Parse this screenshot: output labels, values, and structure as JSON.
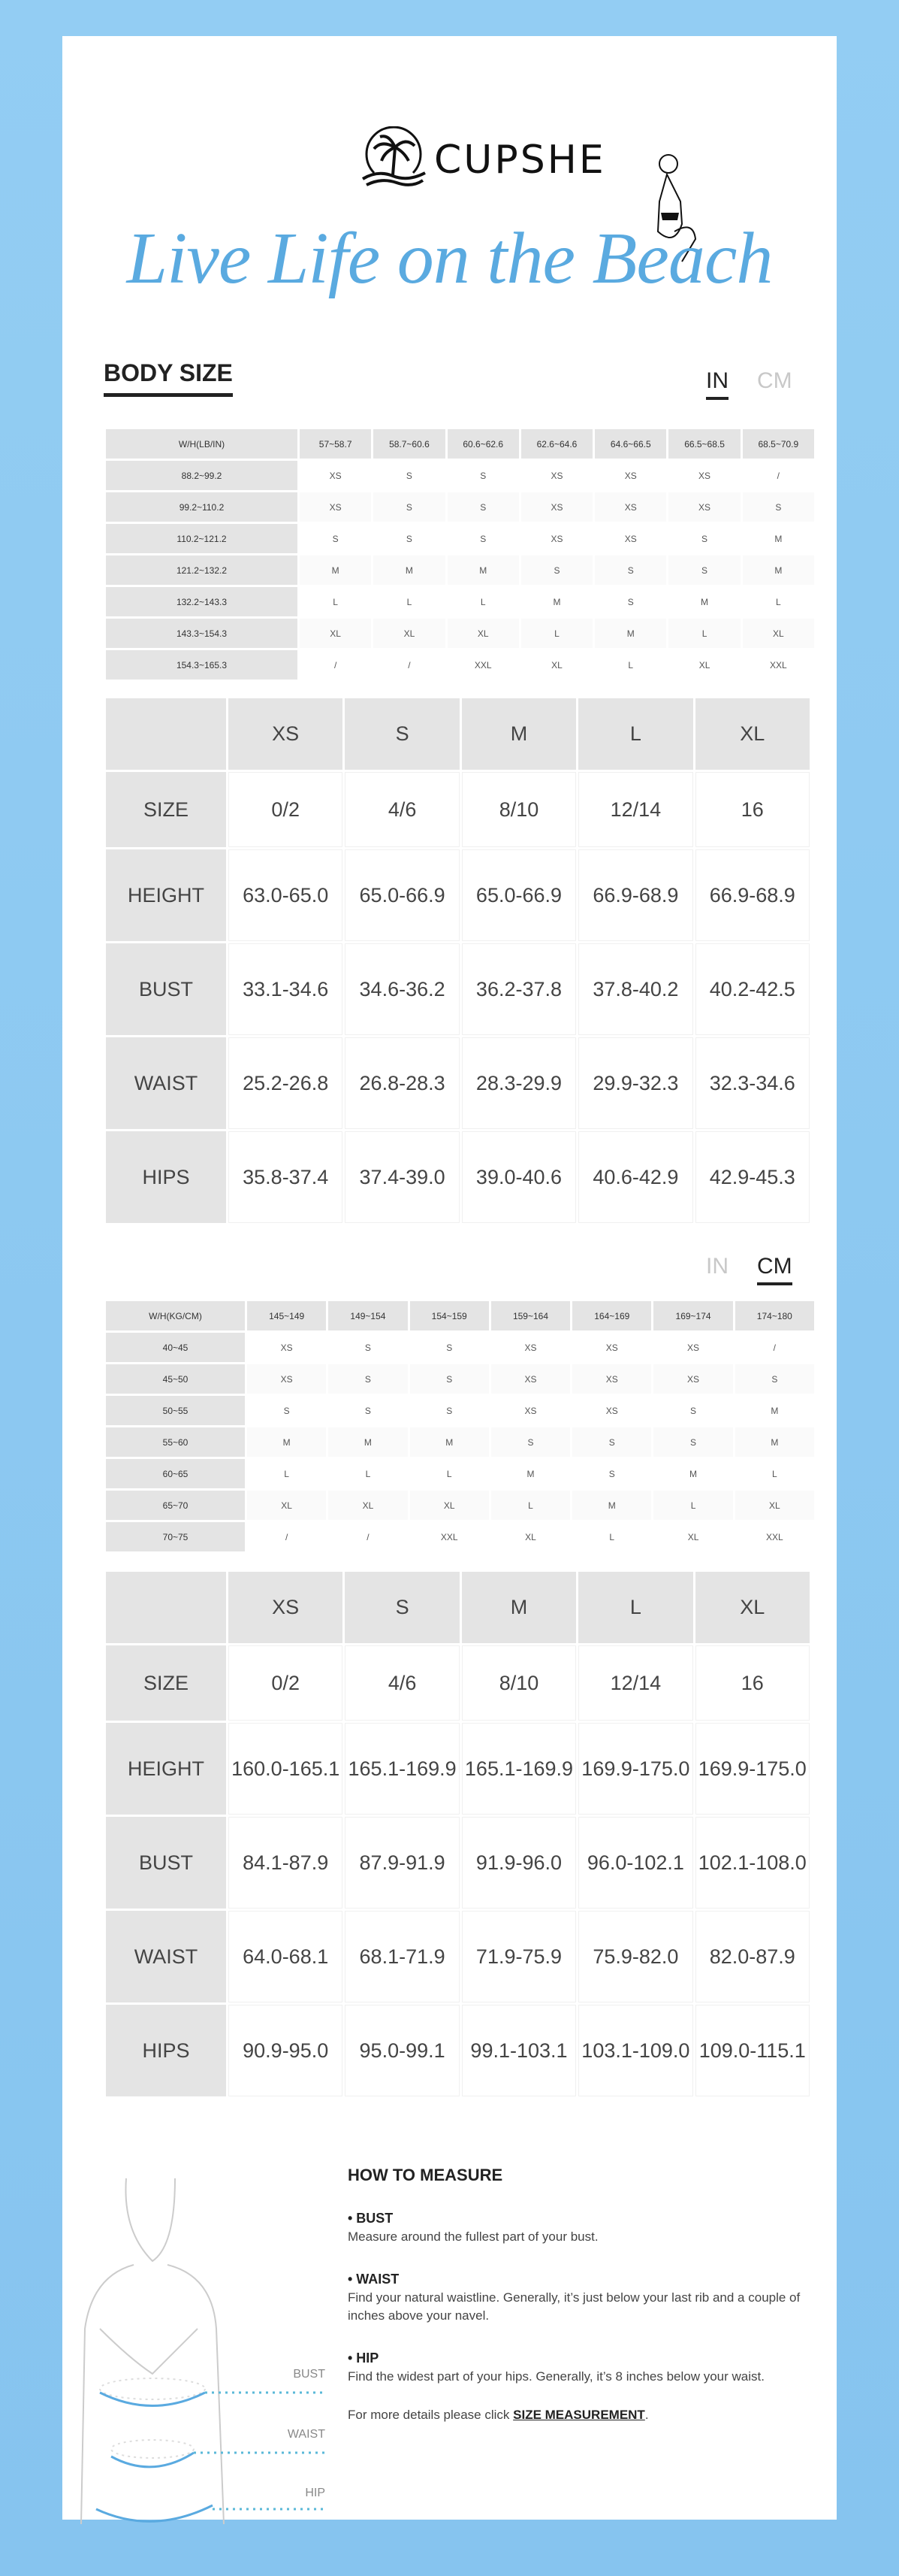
{
  "brand": {
    "name": "CUPSHE",
    "tagline": "Live Life on the Beach"
  },
  "section_title": "BODY SIZE",
  "units": {
    "in": "IN",
    "cm": "CM"
  },
  "body_table_in": {
    "corner": "W/H(LB/IN)",
    "cols": [
      "57~58.7",
      "58.7~60.6",
      "60.6~62.6",
      "62.6~64.6",
      "64.6~66.5",
      "66.5~68.5",
      "68.5~70.9"
    ],
    "rows": [
      {
        "label": "88.2~99.2",
        "cells": [
          "XS",
          "S",
          "S",
          "XS",
          "XS",
          "XS",
          "/"
        ]
      },
      {
        "label": "99.2~110.2",
        "cells": [
          "XS",
          "S",
          "S",
          "XS",
          "XS",
          "XS",
          "S"
        ]
      },
      {
        "label": "110.2~121.2",
        "cells": [
          "S",
          "S",
          "S",
          "XS",
          "XS",
          "S",
          "M"
        ]
      },
      {
        "label": "121.2~132.2",
        "cells": [
          "M",
          "M",
          "M",
          "S",
          "S",
          "S",
          "M"
        ]
      },
      {
        "label": "132.2~143.3",
        "cells": [
          "L",
          "L",
          "L",
          "M",
          "S",
          "M",
          "L"
        ]
      },
      {
        "label": "143.3~154.3",
        "cells": [
          "XL",
          "XL",
          "XL",
          "L",
          "M",
          "L",
          "XL"
        ]
      },
      {
        "label": "154.3~165.3",
        "cells": [
          "/",
          "/",
          "XXL",
          "XL",
          "L",
          "XL",
          "XXL"
        ]
      }
    ]
  },
  "size_table_in": {
    "cols": [
      "XS",
      "S",
      "M",
      "L",
      "XL"
    ],
    "rows": [
      {
        "label": "SIZE",
        "cells": [
          "0/2",
          "4/6",
          "8/10",
          "12/14",
          "16"
        ]
      },
      {
        "label": "HEIGHT",
        "cells": [
          "63.0-65.0",
          "65.0-66.9",
          "65.0-66.9",
          "66.9-68.9",
          "66.9-68.9"
        ]
      },
      {
        "label": "BUST",
        "cells": [
          "33.1-34.6",
          "34.6-36.2",
          "36.2-37.8",
          "37.8-40.2",
          "40.2-42.5"
        ]
      },
      {
        "label": "WAIST",
        "cells": [
          "25.2-26.8",
          "26.8-28.3",
          "28.3-29.9",
          "29.9-32.3",
          "32.3-34.6"
        ]
      },
      {
        "label": "HIPS",
        "cells": [
          "35.8-37.4",
          "37.4-39.0",
          "39.0-40.6",
          "40.6-42.9",
          "42.9-45.3"
        ]
      }
    ]
  },
  "body_table_cm": {
    "corner": "W/H(KG/CM)",
    "cols": [
      "145~149",
      "149~154",
      "154~159",
      "159~164",
      "164~169",
      "169~174",
      "174~180"
    ],
    "rows": [
      {
        "label": "40~45",
        "cells": [
          "XS",
          "S",
          "S",
          "XS",
          "XS",
          "XS",
          "/"
        ]
      },
      {
        "label": "45~50",
        "cells": [
          "XS",
          "S",
          "S",
          "XS",
          "XS",
          "XS",
          "S"
        ]
      },
      {
        "label": "50~55",
        "cells": [
          "S",
          "S",
          "S",
          "XS",
          "XS",
          "S",
          "M"
        ]
      },
      {
        "label": "55~60",
        "cells": [
          "M",
          "M",
          "M",
          "S",
          "S",
          "S",
          "M"
        ]
      },
      {
        "label": "60~65",
        "cells": [
          "L",
          "L",
          "L",
          "M",
          "S",
          "M",
          "L"
        ]
      },
      {
        "label": "65~70",
        "cells": [
          "XL",
          "XL",
          "XL",
          "L",
          "M",
          "L",
          "XL"
        ]
      },
      {
        "label": "70~75",
        "cells": [
          "/",
          "/",
          "XXL",
          "XL",
          "L",
          "XL",
          "XXL"
        ]
      }
    ]
  },
  "size_table_cm": {
    "cols": [
      "XS",
      "S",
      "M",
      "L",
      "XL"
    ],
    "rows": [
      {
        "label": "SIZE",
        "cells": [
          "0/2",
          "4/6",
          "8/10",
          "12/14",
          "16"
        ]
      },
      {
        "label": "HEIGHT",
        "cells": [
          "160.0-165.1",
          "165.1-169.9",
          "165.1-169.9",
          "169.9-175.0",
          "169.9-175.0"
        ]
      },
      {
        "label": "BUST",
        "cells": [
          "84.1-87.9",
          "87.9-91.9",
          "91.9-96.0",
          "96.0-102.1",
          "102.1-108.0"
        ]
      },
      {
        "label": "WAIST",
        "cells": [
          "64.0-68.1",
          "68.1-71.9",
          "71.9-75.9",
          "75.9-82.0",
          "82.0-87.9"
        ]
      },
      {
        "label": "HIPS",
        "cells": [
          "90.9-95.0",
          "95.0-99.1",
          "99.1-103.1",
          "103.1-109.0",
          "109.0-115.1"
        ]
      }
    ]
  },
  "how_to_measure": {
    "title": "HOW TO MEASURE",
    "figure_labels": {
      "bust": "BUST",
      "waist": "WAIST",
      "hip": "HIP"
    },
    "items": [
      {
        "name": "• BUST",
        "text": "Measure around the fullest part of your bust."
      },
      {
        "name": "• WAIST",
        "text": "Find your natural waistline. Generally, it’s just below your last rib and a couple of inches above your navel."
      },
      {
        "name": "• HIP",
        "text": "Find the widest part of your hips. Generally, it’s 8 inches below your waist."
      }
    ],
    "more_prefix": "For more details please click ",
    "more_link": "SIZE MEASUREMENT",
    "more_suffix": "."
  },
  "colors": {
    "background": "#8ec9f1",
    "accent": "#5aaae0",
    "header_cell": "#e4e4e4"
  }
}
